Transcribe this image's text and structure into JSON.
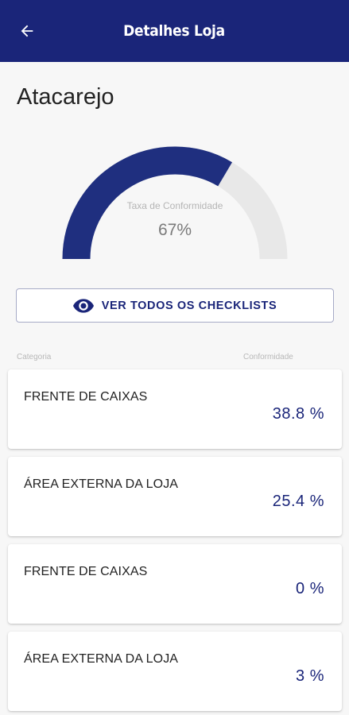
{
  "header": {
    "title": "Detalhes Loja",
    "back_icon": "arrow-left-icon"
  },
  "store": {
    "name": "Atacarejo"
  },
  "gauge": {
    "label": "Taxa de Conformidade",
    "value_text": "67%",
    "value": 0.67,
    "fill_color": "#1f2f7f",
    "track_color": "#e8e8e8"
  },
  "checklists_button": {
    "label": "VER TODOS OS CHECKLISTS",
    "icon": "eye-icon"
  },
  "table": {
    "col_category": "Categoria",
    "col_conformity": "Conformidade",
    "rows": [
      {
        "category": "FRENTE DE CAIXAS",
        "conformity": "38.8 %"
      },
      {
        "category": "ÁREA EXTERNA DA LOJA",
        "conformity": "25.4 %"
      },
      {
        "category": "FRENTE DE CAIXAS",
        "conformity": "0 %"
      },
      {
        "category": "ÁREA EXTERNA DA LOJA",
        "conformity": "3 %"
      }
    ]
  },
  "colors": {
    "primary": "#1a2579",
    "background": "#f7f7f7"
  }
}
